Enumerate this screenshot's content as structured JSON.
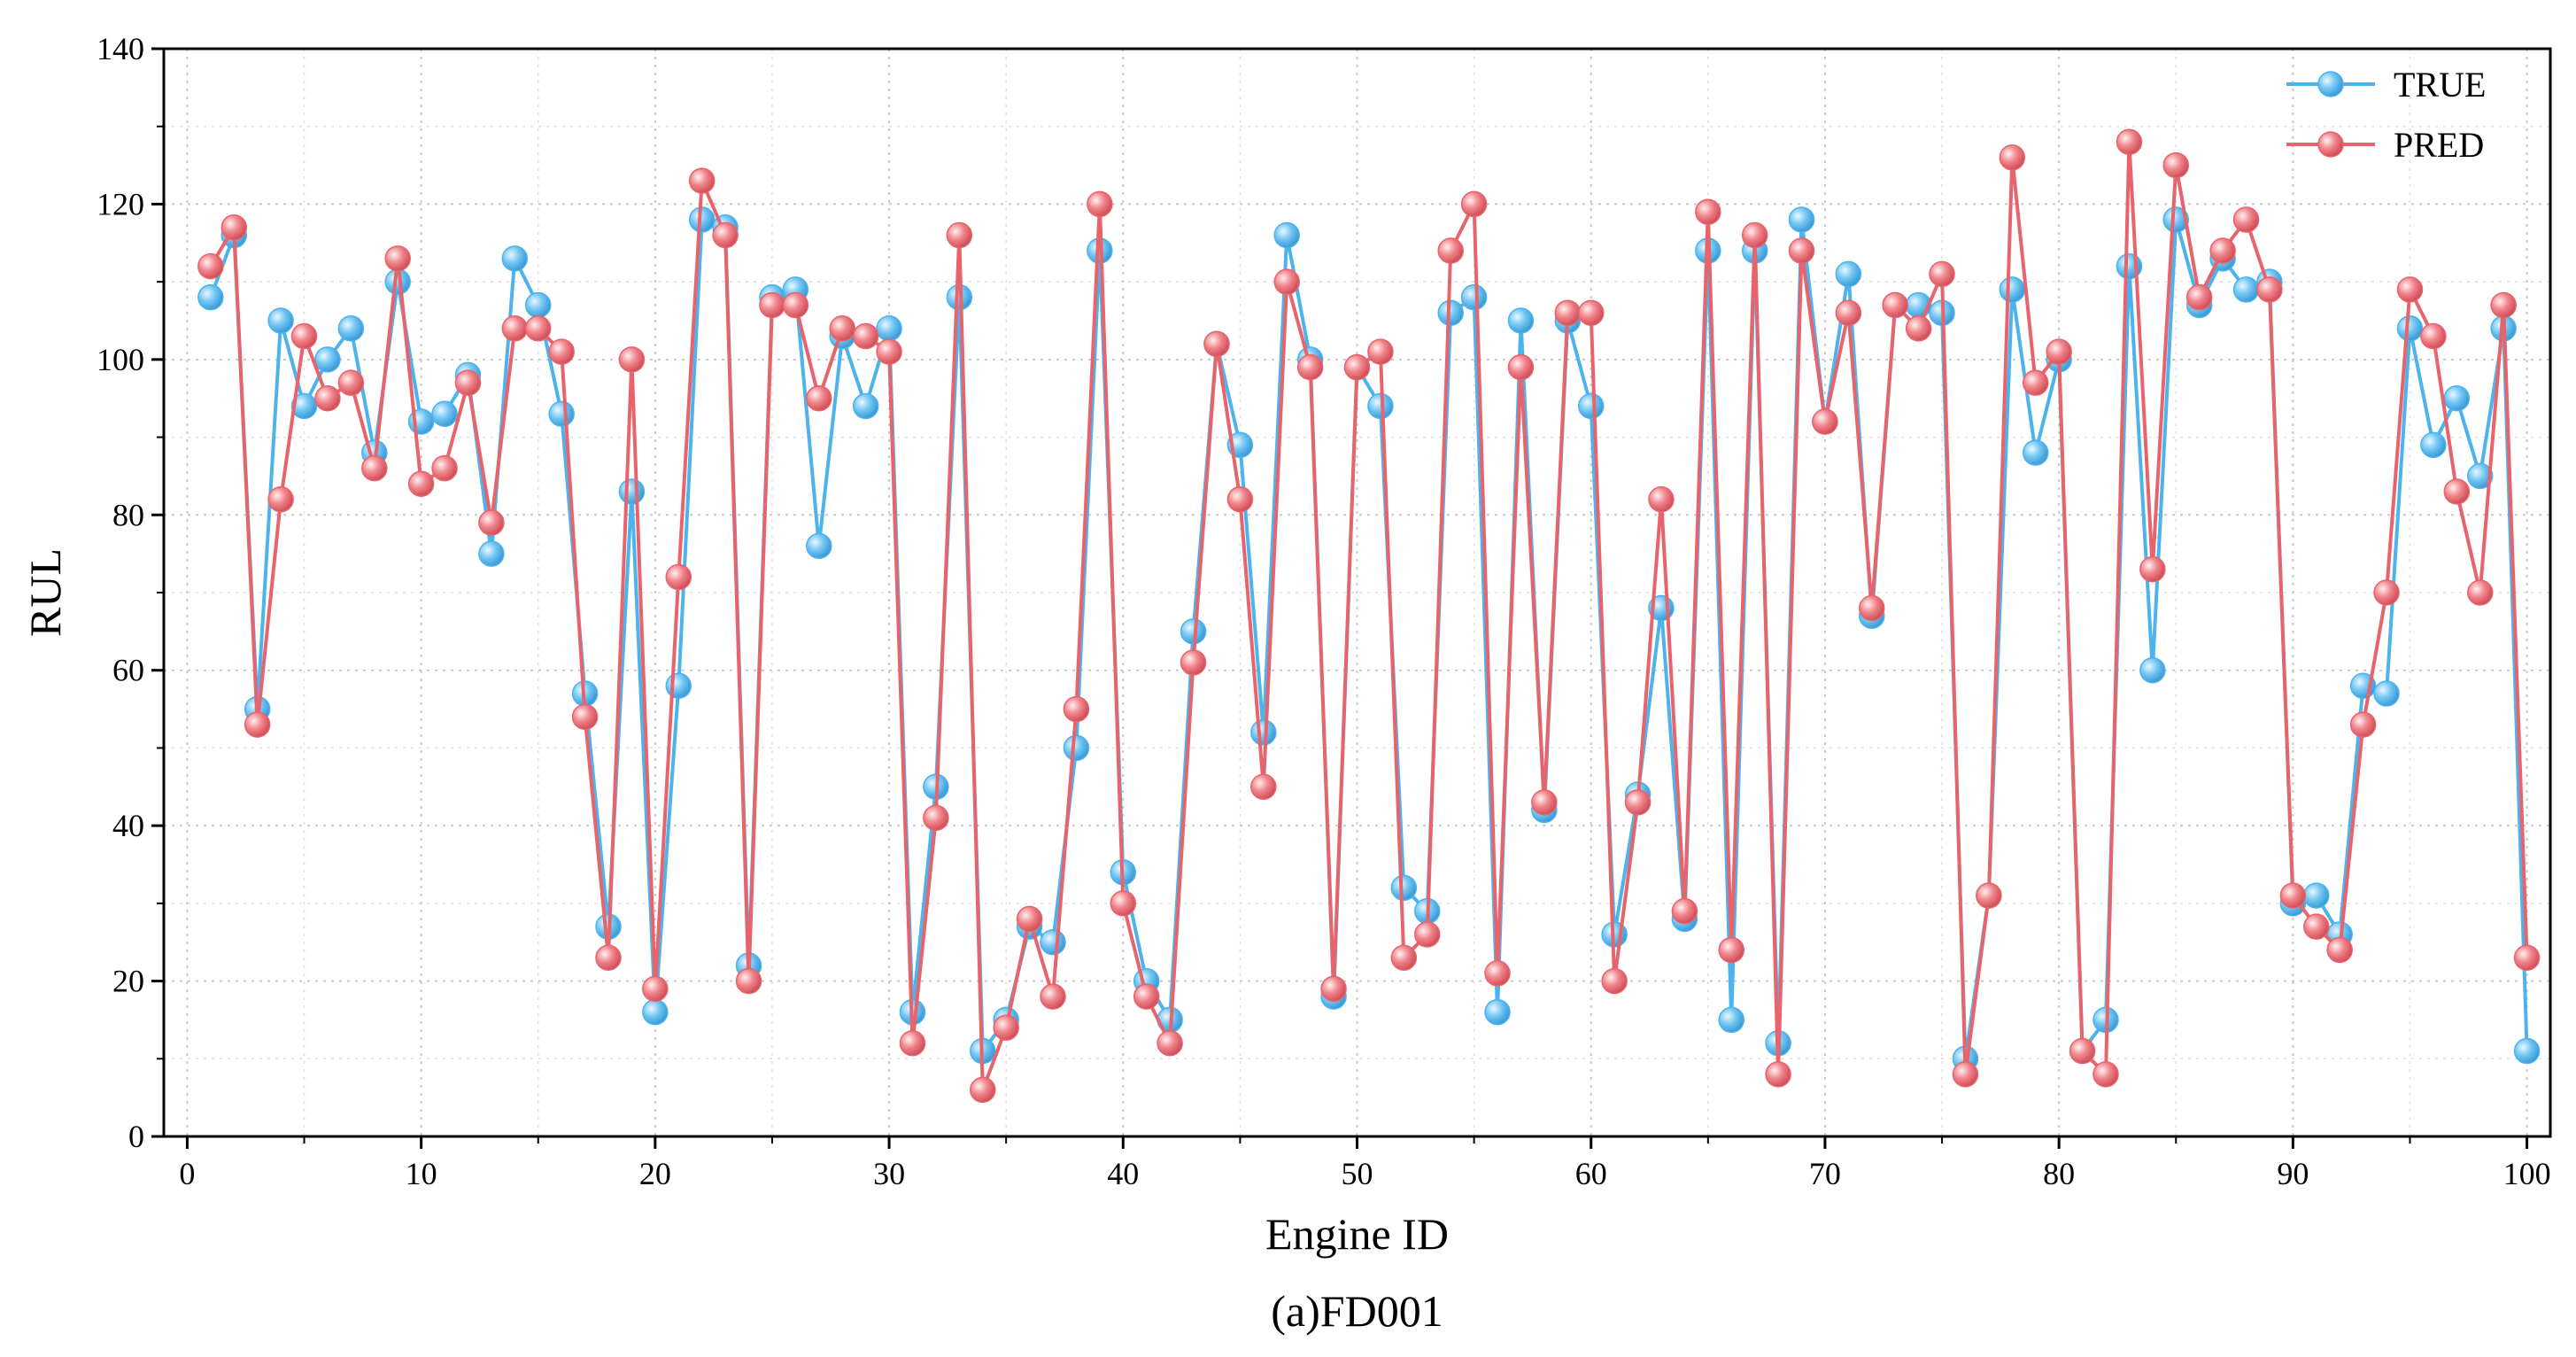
{
  "chart_data": {
    "type": "line",
    "caption": "(a)FD001",
    "xlabel": "Engine ID",
    "ylabel": "RUL",
    "xlim": [
      -1,
      101
    ],
    "ylim": [
      0,
      140
    ],
    "xticks": [
      "0",
      "10",
      "20",
      "30",
      "40",
      "50",
      "60",
      "70",
      "80",
      "90",
      "100"
    ],
    "yticks": [
      "0",
      "20",
      "40",
      "60",
      "80",
      "100",
      "120",
      "140"
    ],
    "grid": true,
    "legend_position": "top-right",
    "series": [
      {
        "name": "TRUE",
        "color": "#4db3ec",
        "values": [
          108,
          116,
          55,
          105,
          94,
          100,
          104,
          88,
          110,
          92,
          93,
          98,
          75,
          113,
          107,
          93,
          57,
          27,
          83,
          16,
          58,
          118,
          117,
          22,
          108,
          109,
          76,
          103,
          94,
          104,
          16,
          45,
          108,
          11,
          15,
          27,
          25,
          50,
          114,
          34,
          20,
          15,
          65,
          102,
          89,
          52,
          116,
          100,
          18,
          99,
          94,
          32,
          29,
          106,
          108,
          16,
          105,
          42,
          105,
          94,
          26,
          44,
          68,
          28,
          114,
          15,
          114,
          12,
          118,
          92,
          111,
          67,
          107,
          107,
          106,
          10,
          31,
          109,
          88,
          100,
          11,
          15,
          112,
          60,
          118,
          107,
          113,
          109,
          110,
          30,
          31,
          26,
          58,
          57,
          104,
          89,
          95,
          85,
          104,
          11
        ]
      },
      {
        "name": "PRED",
        "color": "#e8646c",
        "values": [
          112,
          117,
          53,
          82,
          103,
          95,
          97,
          86,
          113,
          84,
          86,
          97,
          79,
          104,
          104,
          101,
          54,
          23,
          100,
          19,
          72,
          123,
          116,
          20,
          107,
          107,
          95,
          104,
          103,
          101,
          12,
          41,
          116,
          6,
          14,
          28,
          18,
          55,
          120,
          30,
          18,
          12,
          61,
          102,
          82,
          45,
          110,
          99,
          19,
          99,
          101,
          23,
          26,
          114,
          120,
          21,
          99,
          43,
          106,
          106,
          20,
          43,
          82,
          29,
          119,
          24,
          116,
          8,
          114,
          92,
          106,
          68,
          107,
          104,
          111,
          8,
          31,
          126,
          97,
          101,
          11,
          8,
          128,
          73,
          125,
          108,
          114,
          118,
          109,
          31,
          27,
          24,
          53,
          70,
          109,
          103,
          83,
          70,
          107,
          23
        ]
      }
    ]
  }
}
